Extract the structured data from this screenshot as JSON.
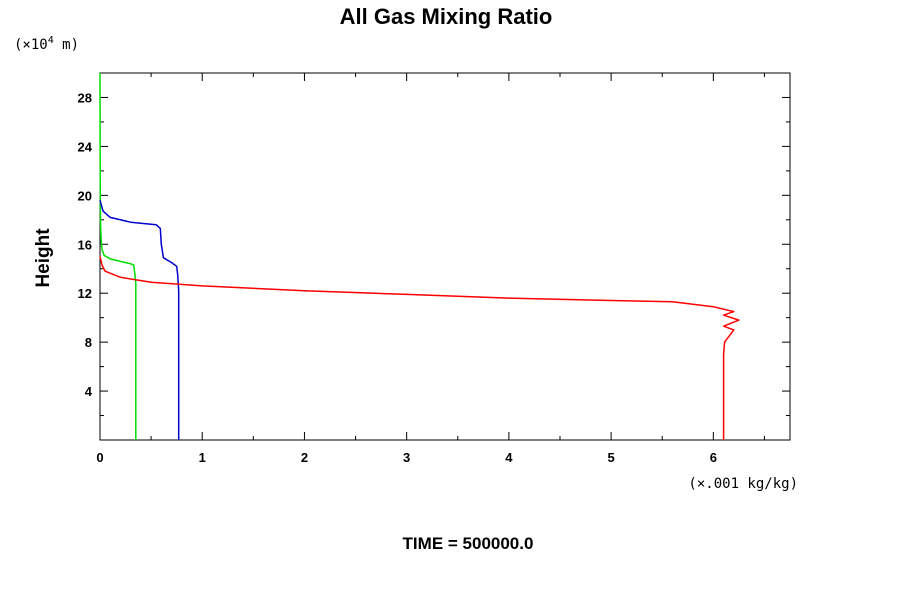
{
  "chart_data": {
    "type": "line",
    "title": "All Gas Mixing Ratio",
    "ylabel": "Height",
    "y_unit_prefix": "(×10",
    "y_unit_exp": "4",
    "y_unit_suffix": " m)",
    "x_unit": "(×.001 kg/kg)",
    "footer": "TIME = 500000.0",
    "xlim": [
      0,
      6.75
    ],
    "ylim": [
      0,
      30
    ],
    "xticks": [
      0,
      1,
      2,
      3,
      4,
      5,
      6
    ],
    "xtick_labels": [
      "0",
      "1",
      "2",
      "3",
      "4",
      "5",
      "6"
    ],
    "yticks": [
      4,
      8,
      12,
      16,
      20,
      24,
      28
    ],
    "ytick_labels": [
      "4",
      "8",
      "12",
      "16",
      "20",
      "24",
      "28"
    ],
    "series": [
      {
        "name": "green",
        "color": "#00dd00",
        "points": [
          [
            0.35,
            0
          ],
          [
            0.35,
            9
          ],
          [
            0.35,
            10
          ],
          [
            0.35,
            11.5
          ],
          [
            0.35,
            12.8
          ],
          [
            0.34,
            13.6
          ],
          [
            0.33,
            14.3
          ],
          [
            0.3,
            14.4
          ],
          [
            0.2,
            14.6
          ],
          [
            0.1,
            14.8
          ],
          [
            0.04,
            15.1
          ],
          [
            0.02,
            15.6
          ],
          [
            0.01,
            16.5
          ],
          [
            0.005,
            18
          ],
          [
            0.002,
            22
          ],
          [
            0,
            30
          ]
        ]
      },
      {
        "name": "blue",
        "color": "#0000cc",
        "points": [
          [
            0.77,
            0
          ],
          [
            0.77,
            8
          ],
          [
            0.77,
            10
          ],
          [
            0.77,
            11.3
          ],
          [
            0.77,
            12.2
          ],
          [
            0.76,
            13.5
          ],
          [
            0.75,
            14.2
          ],
          [
            0.7,
            14.5
          ],
          [
            0.62,
            14.9
          ],
          [
            0.6,
            16
          ],
          [
            0.59,
            17.3
          ],
          [
            0.55,
            17.6
          ],
          [
            0.3,
            17.8
          ],
          [
            0.1,
            18.2
          ],
          [
            0.03,
            18.7
          ],
          [
            0.01,
            19.3
          ],
          [
            0,
            19.6
          ]
        ]
      },
      {
        "name": "red",
        "color": "#ff0000",
        "points": [
          [
            6.1,
            0
          ],
          [
            6.1,
            3
          ],
          [
            6.1,
            5
          ],
          [
            6.1,
            7
          ],
          [
            6.11,
            8
          ],
          [
            6.2,
            9
          ],
          [
            6.1,
            9.3
          ],
          [
            6.25,
            9.8
          ],
          [
            6.1,
            10.2
          ],
          [
            6.2,
            10.5
          ],
          [
            6.0,
            10.9
          ],
          [
            5.6,
            11.3
          ],
          [
            5,
            11.4
          ],
          [
            4,
            11.6
          ],
          [
            3,
            11.9
          ],
          [
            2,
            12.2
          ],
          [
            1,
            12.6
          ],
          [
            0.5,
            12.9
          ],
          [
            0.2,
            13.3
          ],
          [
            0.05,
            13.8
          ],
          [
            0.02,
            14.3
          ],
          [
            0,
            15
          ]
        ]
      }
    ]
  }
}
